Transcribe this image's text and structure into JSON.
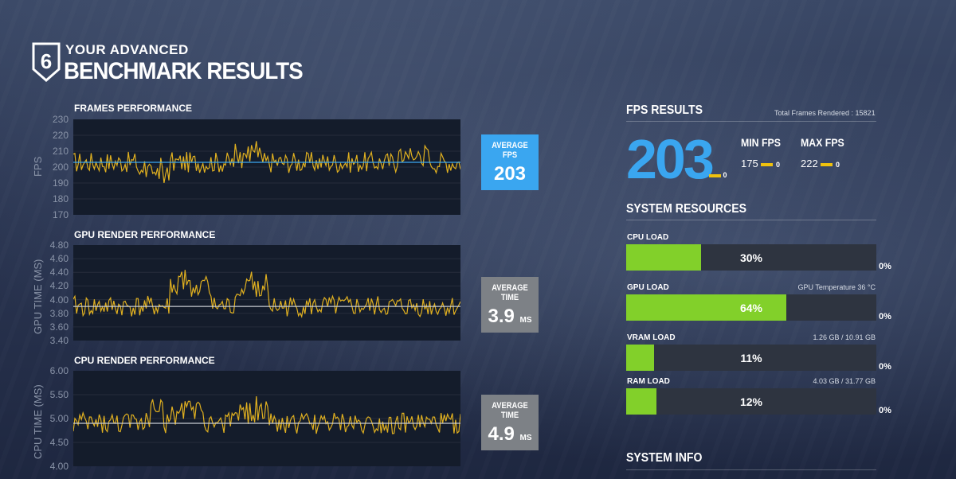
{
  "header": {
    "subtitle": "YOUR ADVANCED",
    "title": "BENCHMARK RESULTS",
    "logo_text": "6"
  },
  "charts": {
    "fps": {
      "title": "FRAMES PERFORMANCE",
      "ylabel": "FPS",
      "ticks": [
        "230",
        "220",
        "210",
        "200",
        "190",
        "180",
        "170"
      ],
      "avg_label": "AVERAGE FPS",
      "avg_value": "203",
      "avg_unit": ""
    },
    "gpu": {
      "title": "GPU RENDER PERFORMANCE",
      "ylabel": "GPU TIME (MS)",
      "ticks": [
        "4.80",
        "4.60",
        "4.40",
        "4.20",
        "4.00",
        "3.80",
        "3.60",
        "3.40"
      ],
      "avg_label": "AVERAGE TIME",
      "avg_value": "3.9",
      "avg_unit": "MS"
    },
    "cpu": {
      "title": "CPU RENDER PERFORMANCE",
      "ylabel": "CPU TIME (MS)",
      "ticks": [
        "6.00",
        "5.50",
        "5.00",
        "4.50",
        "4.00"
      ],
      "avg_label": "AVERAGE TIME",
      "avg_value": "4.9",
      "avg_unit": "MS"
    }
  },
  "chart_data": [
    {
      "type": "line",
      "title": "FRAMES PERFORMANCE",
      "ylabel": "FPS",
      "ylim": [
        170,
        230
      ],
      "average": 203
    },
    {
      "type": "line",
      "title": "GPU RENDER PERFORMANCE",
      "ylabel": "GPU TIME (MS)",
      "ylim": [
        3.4,
        4.8
      ],
      "average": 3.9
    },
    {
      "type": "line",
      "title": "CPU RENDER PERFORMANCE",
      "ylabel": "CPU TIME (MS)",
      "ylim": [
        4.0,
        6.0
      ],
      "average": 4.9
    }
  ],
  "fps_results": {
    "title": "FPS RESULTS",
    "total_frames": "Total Frames Rendered : 15821",
    "average": "203",
    "average_marker": "0",
    "min_label": "MIN FPS",
    "min_value": "175",
    "min_marker": "0",
    "max_label": "MAX FPS",
    "max_value": "222",
    "max_marker": "0"
  },
  "system_resources": {
    "title": "SYSTEM RESOURCES",
    "items": [
      {
        "label": "CPU LOAD",
        "percent": "30%",
        "fraction": 0.3,
        "info": "",
        "zero": "0%"
      },
      {
        "label": "GPU LOAD",
        "percent": "64%",
        "fraction": 0.64,
        "info": "GPU Temperature 36 °C",
        "zero": "0%"
      },
      {
        "label": "VRAM LOAD",
        "percent": "11%",
        "fraction": 0.11,
        "info": "1.26 GB / 10.91 GB",
        "zero": "0%"
      },
      {
        "label": "RAM LOAD",
        "percent": "12%",
        "fraction": 0.12,
        "info": "4.03 GB / 31.77 GB",
        "zero": "0%"
      }
    ]
  },
  "system_info": {
    "title": "SYSTEM INFO"
  },
  "colors": {
    "fps_accent": "#3aa6f0",
    "line": "#e0b020",
    "load_fill": "#82d02a",
    "marker": "#f0c20d"
  }
}
